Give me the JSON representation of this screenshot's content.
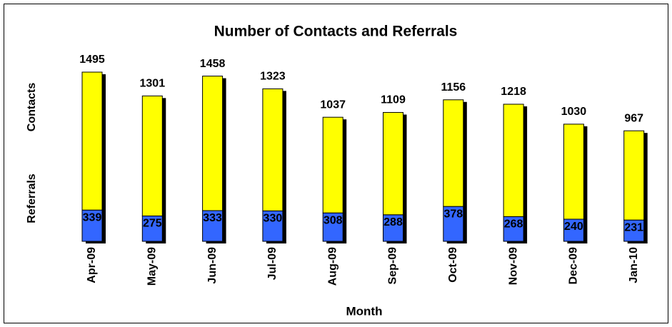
{
  "chart_data": {
    "type": "stacked_bar",
    "title": "Number of Contacts and Referrals",
    "x_label": "Month",
    "categories": [
      "Apr-09",
      "May-09",
      "Jun-09",
      "Jul-09",
      "Aug-09",
      "Sep-09",
      "Oct-09",
      "Nov-09",
      "Dec-09",
      "Jan-10"
    ],
    "series": [
      {
        "name": "Referrals",
        "color": "#3366ff",
        "values": [
          339,
          275,
          333,
          330,
          308,
          288,
          378,
          268,
          240,
          231
        ]
      },
      {
        "name": "Contacts",
        "color": "#ffff00",
        "values": [
          1495,
          1301,
          1458,
          1323,
          1037,
          1109,
          1156,
          1218,
          1030,
          967
        ]
      }
    ]
  }
}
